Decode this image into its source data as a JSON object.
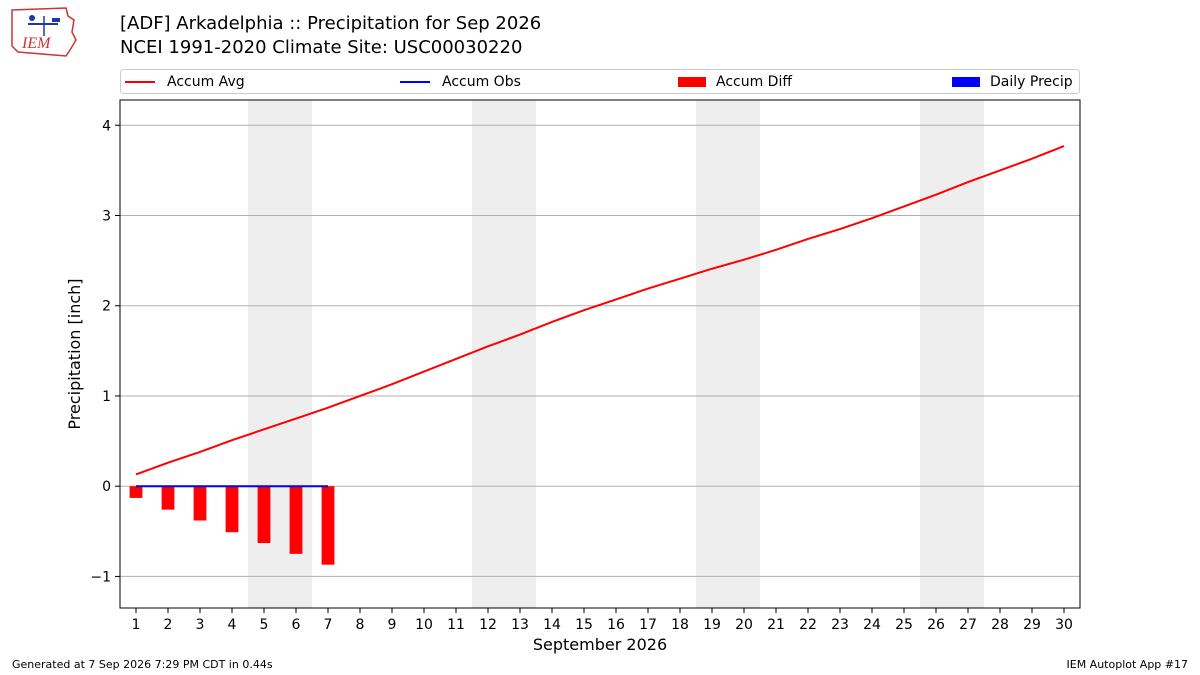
{
  "header": {
    "title_line1": "[ADF] Arkadelphia :: Precipitation for Sep 2026",
    "title_line2": "NCEI 1991-2020 Climate Site: USC00030220",
    "logo_text": "IEM"
  },
  "footer": {
    "generated": "Generated at 7 Sep 2026 7:29 PM CDT in 0.44s",
    "app": "IEM Autoplot App #17"
  },
  "colors": {
    "accum_avg": "#ff0000",
    "accum_obs": "#0000ff",
    "accum_diff": "#ff0000",
    "daily_precip": "#0000ff",
    "weekend_band": "#eeeeee",
    "grid": "#b0b0b0"
  },
  "chart_data": {
    "type": "bar",
    "xlabel": "September 2026",
    "ylabel": "Precipitation [inch]",
    "xlim": [
      0.5,
      30.5
    ],
    "ylim": [
      -1.35,
      4.28
    ],
    "yticks": [
      -1,
      0,
      1,
      2,
      3,
      4
    ],
    "ytick_labels": [
      "−1",
      "0",
      "1",
      "2",
      "3",
      "4"
    ],
    "x": [
      1,
      2,
      3,
      4,
      5,
      6,
      7,
      8,
      9,
      10,
      11,
      12,
      13,
      14,
      15,
      16,
      17,
      18,
      19,
      20,
      21,
      22,
      23,
      24,
      25,
      26,
      27,
      28,
      29,
      30
    ],
    "xtick_labels": [
      "1",
      "2",
      "3",
      "4",
      "5",
      "6",
      "7",
      "8",
      "9",
      "10",
      "11",
      "12",
      "13",
      "14",
      "15",
      "16",
      "17",
      "18",
      "19",
      "20",
      "21",
      "22",
      "23",
      "24",
      "25",
      "26",
      "27",
      "28",
      "29",
      "30"
    ],
    "grid": "horizontal",
    "legend_position": "top, above plot",
    "weekend_bands": [
      [
        4.5,
        6.5
      ],
      [
        11.5,
        13.5
      ],
      [
        18.5,
        20.5
      ],
      [
        25.5,
        27.5
      ]
    ],
    "series": [
      {
        "name": "Accum Avg",
        "type": "line",
        "x": [
          1,
          2,
          3,
          4,
          5,
          6,
          7,
          8,
          9,
          10,
          11,
          12,
          13,
          14,
          15,
          16,
          17,
          18,
          19,
          20,
          21,
          22,
          23,
          24,
          25,
          26,
          27,
          28,
          29,
          30
        ],
        "values": [
          0.13,
          0.26,
          0.38,
          0.51,
          0.63,
          0.75,
          0.87,
          1.0,
          1.13,
          1.27,
          1.41,
          1.55,
          1.68,
          1.82,
          1.95,
          2.07,
          2.19,
          2.3,
          2.41,
          2.51,
          2.62,
          2.74,
          2.85,
          2.97,
          3.1,
          3.23,
          3.37,
          3.5,
          3.63,
          3.77
        ]
      },
      {
        "name": "Accum Obs",
        "type": "line",
        "x": [
          1,
          2,
          3,
          4,
          5,
          6,
          7
        ],
        "values": [
          0,
          0,
          0,
          0,
          0,
          0,
          0
        ]
      },
      {
        "name": "Accum Diff",
        "type": "bar",
        "x": [
          1,
          2,
          3,
          4,
          5,
          6,
          7
        ],
        "values": [
          -0.13,
          -0.26,
          -0.38,
          -0.51,
          -0.63,
          -0.75,
          -0.87
        ]
      },
      {
        "name": "Daily Precip",
        "type": "bar",
        "x": [
          1,
          2,
          3,
          4,
          5,
          6,
          7
        ],
        "values": [
          0,
          0,
          0,
          0,
          0,
          0,
          0
        ]
      }
    ]
  }
}
